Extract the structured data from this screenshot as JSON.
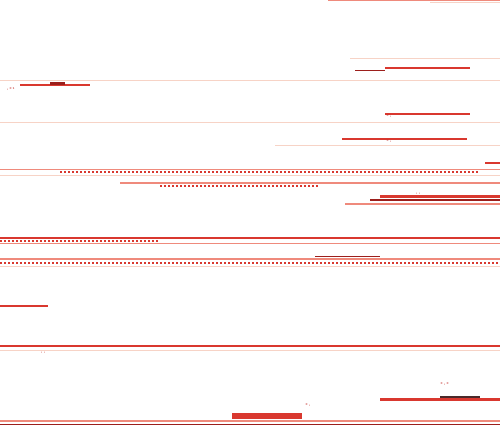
{
  "glyph_marks": [
    {
      "name": "mark-top-left",
      "text": "·°¹"
    },
    {
      "name": "mark-upper-right-1",
      "text": "°·"
    },
    {
      "name": "mark-upper-right-2",
      "text": "°·"
    },
    {
      "name": "mark-middle",
      "text": "··"
    },
    {
      "name": "mark-lower-left",
      "text": "··"
    },
    {
      "name": "mark-bottom-1",
      "text": "°·°"
    },
    {
      "name": "mark-bottom-2",
      "text": "°·"
    }
  ],
  "colors": {
    "primary_red": "#d9382f",
    "dark_red": "#9c1f1c",
    "light_red": "#ef8a7c",
    "pale": "#f7d3c6",
    "dark": "#4a2a2a"
  }
}
